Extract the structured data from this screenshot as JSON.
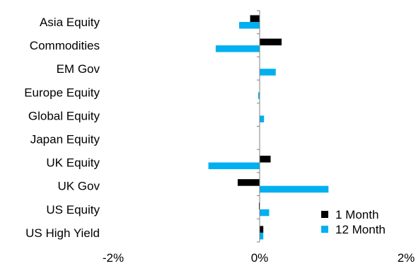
{
  "chart_data": {
    "type": "bar",
    "orientation": "horizontal",
    "categories": [
      "Asia Equity",
      "Commodities",
      "EM Gov",
      "Europe Equity",
      "Global Equity",
      "Japan Equity",
      "UK Equity",
      "UK Gov",
      "US Equity",
      "US High Yield"
    ],
    "series": [
      {
        "name": "1 Month",
        "color": "#000000",
        "values": [
          -0.13,
          0.3,
          0.0,
          0.0,
          0.0,
          0.0,
          0.15,
          -0.3,
          -0.01,
          0.05
        ]
      },
      {
        "name": "12 Month",
        "color": "#00b0f0",
        "values": [
          -0.28,
          -0.6,
          0.22,
          -0.02,
          0.06,
          0.0,
          -0.7,
          0.94,
          0.13,
          0.05
        ]
      }
    ],
    "x_ticks": [
      "-2%",
      "0%",
      "2%"
    ],
    "xlim": [
      -2,
      2
    ],
    "unit": "%",
    "grid": false,
    "legend_position": "bottom-right"
  }
}
